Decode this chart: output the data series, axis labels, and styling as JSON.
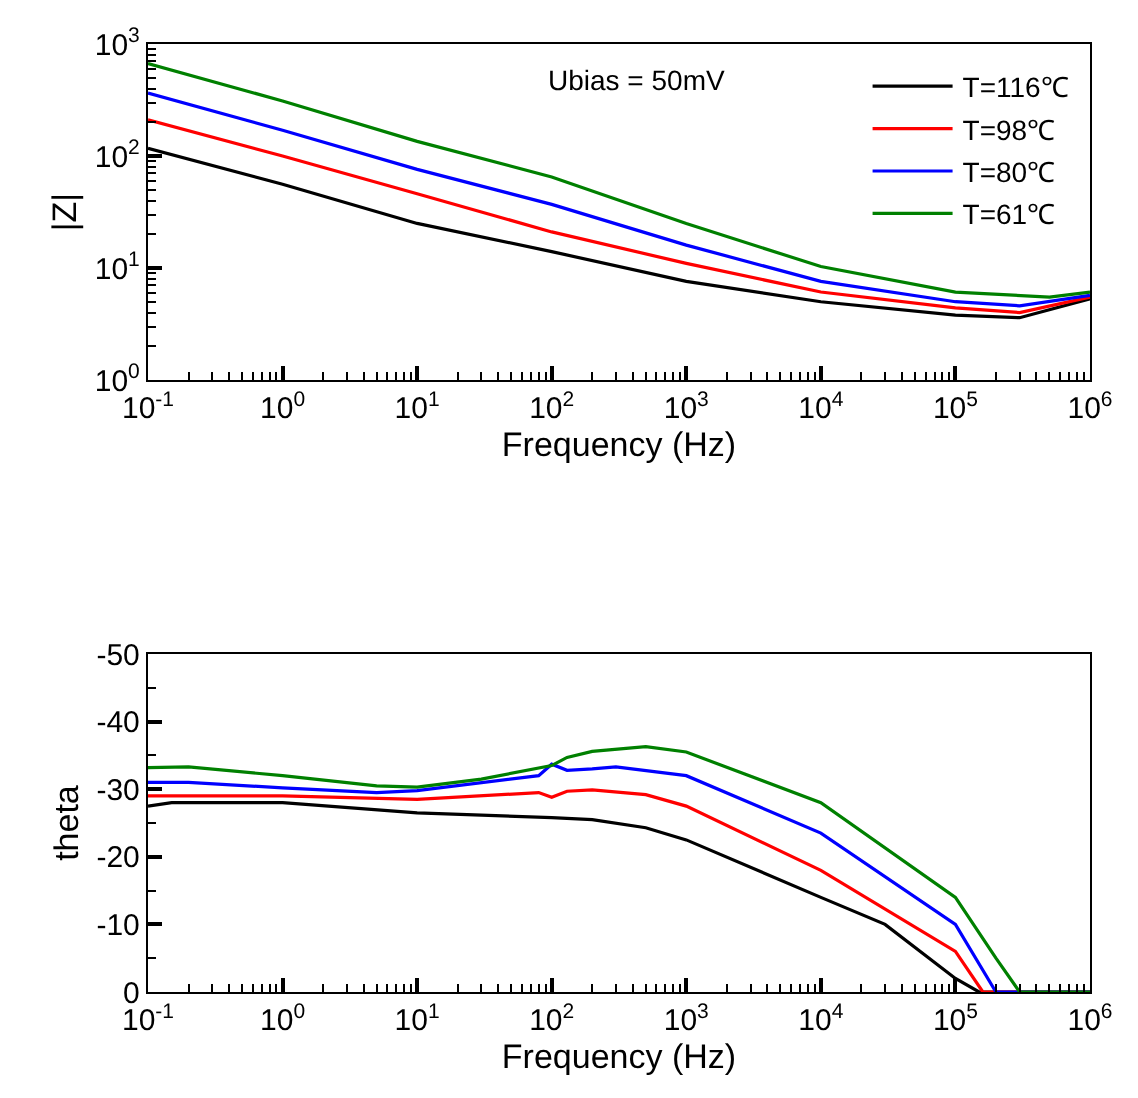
{
  "chart_data": [
    {
      "type": "line",
      "xlabel": "Frequency (Hz)",
      "ylabel": "|Z|",
      "log": "xy",
      "legend": "top right",
      "line_style": "solid",
      "marker": "none",
      "annotations": [
        "Ubias = 50mV"
      ],
      "x": [
        0.1,
        1,
        10,
        100,
        1000,
        10000,
        100000,
        300000,
        1000000
      ],
      "xlim": [
        0.1,
        1000000
      ],
      "ylim": [
        1,
        1000
      ],
      "xticks": [
        {
          "value": 0.1,
          "label": "10$^{-1}$"
        },
        {
          "value": 1,
          "label": "10$^{0}$"
        },
        {
          "value": 10,
          "label": "10$^{1}$"
        },
        {
          "value": 100,
          "label": "10$^{2}$"
        },
        {
          "value": 1000,
          "label": "10$^{3}$"
        },
        {
          "value": 10000,
          "label": "10$^{4}$"
        },
        {
          "value": 100000,
          "label": "10$^{5}$"
        },
        {
          "value": 1000000,
          "label": "10$^{6}$"
        }
      ],
      "yticks": [
        {
          "value": 1,
          "label": "10$^{0}$"
        },
        {
          "value": 10,
          "label": "10$^{1}$"
        },
        {
          "value": 100,
          "label": "10$^{2}$"
        },
        {
          "value": 1000,
          "label": "10$^{3}$"
        }
      ],
      "series": [
        {
          "name": "T=116℃",
          "color": "#000000",
          "values": [
            117,
            56,
            25,
            14,
            7.6,
            5,
            3.8,
            3.6,
            5.3
          ]
        },
        {
          "name": "T=98℃",
          "color": "#ff0000",
          "values": [
            210,
            100,
            46,
            21,
            11,
            6.1,
            4.4,
            4.0,
            5.5
          ]
        },
        {
          "name": "T=80℃",
          "color": "#0000ff",
          "values": [
            365,
            170,
            76,
            37,
            16,
            7.6,
            5.0,
            4.6,
            5.7
          ]
        },
        {
          "name": "T=61℃",
          "color": "#008000",
          "x": [
            0.1,
            1,
            10,
            100,
            1000,
            10000,
            100000,
            500000,
            1000000
          ],
          "values": [
            670,
            310,
            135,
            65,
            25,
            10.3,
            6.1,
            5.5,
            6.1
          ]
        }
      ]
    },
    {
      "type": "line",
      "xlabel": "Frequency (Hz)",
      "ylabel": "theta",
      "log": "x",
      "legend": false,
      "line_style": "solid",
      "marker": "none",
      "xlim": [
        0.1,
        1000000
      ],
      "ylim": [
        0,
        -50
      ],
      "xticks": [
        {
          "value": 0.1,
          "label": "10$^{-1}$"
        },
        {
          "value": 1,
          "label": "10$^{0}$"
        },
        {
          "value": 10,
          "label": "10$^{1}$"
        },
        {
          "value": 100,
          "label": "10$^{2}$"
        },
        {
          "value": 1000,
          "label": "10$^{3}$"
        },
        {
          "value": 10000,
          "label": "10$^{4}$"
        },
        {
          "value": 100000,
          "label": "10$^{5}$"
        },
        {
          "value": 1000000,
          "label": "10$^{6}$"
        }
      ],
      "yticks": [
        0,
        -10,
        -20,
        -30,
        -40,
        -50
      ],
      "series": [
        {
          "color": "#000000",
          "x": [
            0.1,
            0.15,
            1,
            10,
            100,
            200,
            500,
            1000,
            10000,
            30000,
            100000,
            150000,
            1000000
          ],
          "values": [
            -27.5,
            -28,
            -28,
            -26.5,
            -25.8,
            -25.5,
            -24.3,
            -22.5,
            -14,
            -10,
            -2,
            0,
            0
          ]
        },
        {
          "color": "#ff0000",
          "x": [
            0.1,
            1,
            10,
            80,
            100,
            130,
            200,
            500,
            1000,
            10000,
            100000,
            160000,
            1000000
          ],
          "values": [
            -29,
            -29,
            -28.5,
            -29.5,
            -28.8,
            -29.7,
            -29.9,
            -29.2,
            -27.5,
            -18,
            -6,
            0,
            0
          ]
        },
        {
          "color": "#0000ff",
          "x": [
            0.1,
            0.2,
            1,
            5,
            10,
            80,
            100,
            130,
            200,
            300,
            1000,
            10000,
            100000,
            200000,
            1000000
          ],
          "values": [
            -31,
            -31,
            -30.2,
            -29.5,
            -29.8,
            -32,
            -33.7,
            -32.8,
            -33,
            -33.3,
            -32,
            -23.5,
            -10,
            0,
            0
          ]
        },
        {
          "color": "#008000",
          "x": [
            0.1,
            0.2,
            1,
            5,
            10,
            30,
            100,
            130,
            200,
            500,
            1000,
            10000,
            100000,
            200000,
            300000,
            1000000
          ],
          "values": [
            -33.2,
            -33.3,
            -32,
            -30.5,
            -30.3,
            -31.5,
            -33.5,
            -34.7,
            -35.6,
            -36.3,
            -35.5,
            -28,
            -14,
            -5,
            0,
            0
          ]
        }
      ]
    }
  ]
}
